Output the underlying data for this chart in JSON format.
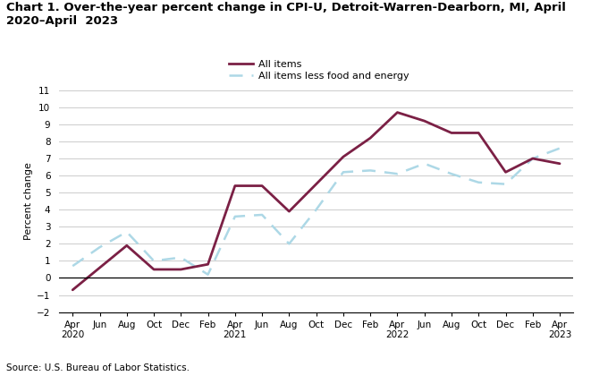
{
  "title_line1": "Chart 1. Over-the-year percent change in CPI-U, Detroit-Warren-Dearborn, MI, April",
  "title_line2": "2020–April  2023",
  "ylabel": "Percent change",
  "source": "Source: U.S. Bureau of Labor Statistics.",
  "x_tick_labels": [
    "Apr\n2020",
    "Jun",
    "Aug",
    "Oct",
    "Dec",
    "Feb",
    "Apr\n2021",
    "Jun",
    "Aug",
    "Oct",
    "Dec",
    "Feb",
    "Apr\n2022",
    "Jun",
    "Aug",
    "Oct",
    "Dec",
    "Feb",
    "Apr\n2023"
  ],
  "ylim": [
    -2.0,
    11.0
  ],
  "yticks": [
    -2.0,
    -1.0,
    0.0,
    1.0,
    2.0,
    3.0,
    4.0,
    5.0,
    6.0,
    7.0,
    8.0,
    9.0,
    10.0,
    11.0
  ],
  "all_items_y": [
    -0.7,
    0.6,
    1.9,
    0.5,
    0.5,
    0.8,
    5.4,
    5.4,
    3.9,
    5.5,
    7.1,
    8.2,
    9.7,
    9.2,
    8.5,
    8.5,
    6.2,
    7.0,
    6.7
  ],
  "core_y": [
    0.7,
    1.8,
    2.7,
    1.0,
    1.2,
    0.2,
    3.6,
    3.7,
    2.0,
    4.0,
    6.2,
    6.3,
    6.1,
    6.7,
    6.1,
    5.6,
    5.5,
    7.0,
    7.6
  ],
  "all_items_color": "#7B2045",
  "core_color": "#ADD8E6",
  "all_items_label": "All items",
  "core_label": "All items less food and energy",
  "grid_color": "#cccccc",
  "bg_color": "white",
  "title_fontsize": 9.5,
  "axis_label_fontsize": 8,
  "tick_fontsize": 7.5,
  "source_fontsize": 7.5,
  "legend_fontsize": 8
}
